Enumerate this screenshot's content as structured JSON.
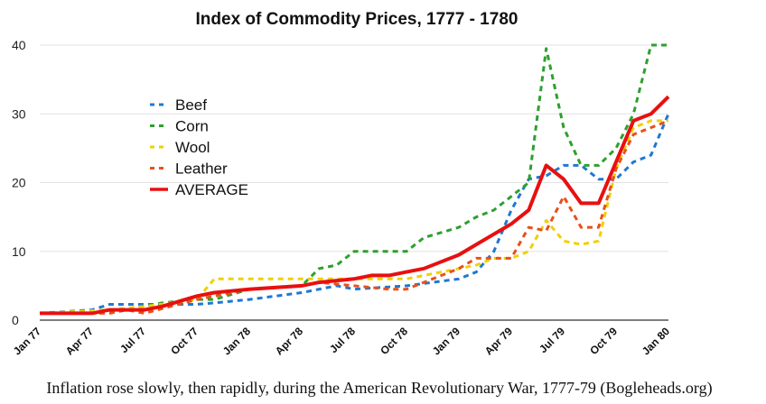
{
  "chart_data": {
    "type": "line",
    "title": "Index of Commodity Prices, 1777 - 1780",
    "xlabel": "",
    "ylabel": "",
    "ylim": [
      0,
      40
    ],
    "yticks": [
      "0",
      "10",
      "20",
      "30",
      "40"
    ],
    "x_tick_labels": [
      "Jan 77",
      "Apr 77",
      "Jul 77",
      "Oct 77",
      "Jan 78",
      "Apr 78",
      "Jul 78",
      "Oct 78",
      "Jan 79",
      "Apr 79",
      "Jul 79",
      "Oct 79",
      "Jan 80"
    ],
    "x_unit": "months since Jan 1777",
    "xlim": [
      0,
      36
    ],
    "grid": "horizontal",
    "legend_position": "upper-left",
    "series": [
      {
        "name": "Beef",
        "color": "#1f78d1",
        "style": "dashed",
        "x": [
          0,
          3,
          4,
          6,
          9,
          10,
          12,
          15,
          17,
          18,
          21,
          24,
          25,
          26,
          27,
          28,
          29,
          30,
          31,
          32,
          33,
          34,
          35,
          36
        ],
        "y": [
          1,
          1.5,
          2.3,
          2.3,
          2.3,
          2.5,
          3,
          4,
          5,
          4.5,
          5,
          6,
          7,
          10,
          16,
          20.5,
          21,
          22.5,
          22.5,
          20.5,
          20.5,
          23,
          24,
          30
        ]
      },
      {
        "name": "Corn",
        "color": "#2ea02e",
        "style": "dashed",
        "x": [
          0,
          3,
          5,
          6,
          7,
          9,
          10,
          12,
          15,
          16,
          17,
          18,
          20,
          21,
          22,
          24,
          25,
          26,
          27,
          28,
          29,
          30,
          31,
          32,
          33,
          34,
          35,
          36
        ],
        "y": [
          1,
          1,
          1.5,
          2,
          2.5,
          3,
          3,
          4.5,
          5,
          7.5,
          8,
          10,
          10,
          10,
          12,
          13.5,
          15,
          16,
          18,
          20,
          39.5,
          28,
          22.5,
          22.5,
          25,
          30,
          40,
          40
        ]
      },
      {
        "name": "Wool",
        "color": "#f0d000",
        "style": "dashed",
        "x": [
          0,
          4,
          6,
          9,
          10,
          15,
          17,
          19,
          21,
          23,
          25,
          26,
          27,
          28,
          29,
          30,
          31,
          32,
          33,
          34,
          35,
          36
        ],
        "y": [
          1,
          1.5,
          2,
          3,
          6,
          6,
          6,
          6,
          6,
          7,
          8,
          9,
          9,
          10,
          14.5,
          11.5,
          11,
          11.5,
          22,
          28,
          29,
          29
        ]
      },
      {
        "name": "Leather",
        "color": "#e8501a",
        "style": "dashed",
        "x": [
          0,
          4,
          5,
          6,
          9,
          12,
          15,
          16,
          18,
          20,
          21,
          23,
          24,
          25,
          26,
          27,
          28,
          29,
          30,
          31,
          32,
          33,
          34,
          35,
          36
        ],
        "y": [
          1,
          1,
          1.5,
          1,
          3,
          4.5,
          5,
          5.5,
          5,
          4.5,
          4.5,
          6.5,
          7.5,
          9,
          9,
          9,
          13.5,
          13,
          18,
          13.5,
          13.5,
          22,
          27,
          28,
          29
        ]
      },
      {
        "name": "AVERAGE",
        "color": "#e81010",
        "style": "solid",
        "x": [
          0,
          3,
          4,
          6,
          7,
          9,
          10,
          12,
          15,
          16,
          18,
          19,
          20,
          21,
          22,
          23,
          24,
          25,
          26,
          27,
          28,
          29,
          30,
          31,
          32,
          33,
          34,
          35,
          36
        ],
        "y": [
          1,
          1,
          1.5,
          1.5,
          2,
          3.5,
          4,
          4.5,
          5,
          5.5,
          6,
          6.5,
          6.5,
          7,
          7.5,
          8.5,
          9.5,
          11,
          12.5,
          14,
          16,
          22.5,
          20.5,
          17,
          17,
          23,
          29,
          30,
          32.5
        ]
      }
    ]
  },
  "caption": "Inflation rose slowly, then rapidly, during the American Revolutionary War, 1777-79 (Bogleheads.org)"
}
